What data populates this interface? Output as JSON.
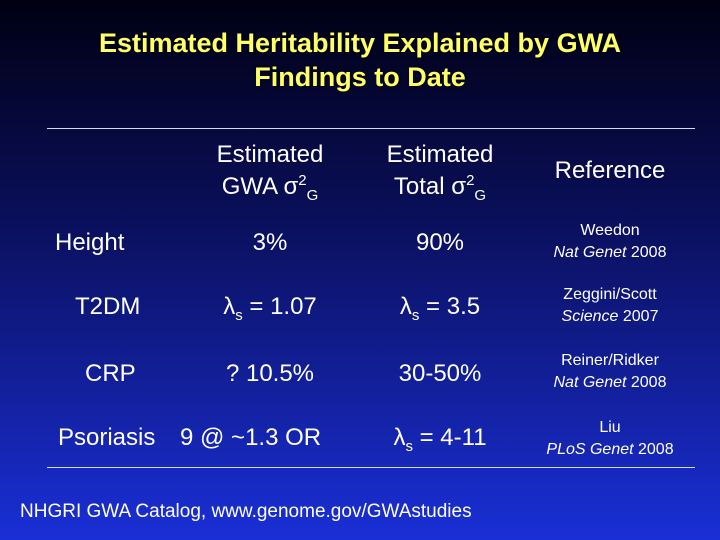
{
  "title": {
    "line1": "Estimated Heritability Explained by GWA",
    "line2": "Findings to Date"
  },
  "headers": {
    "gwa_line1": "Estimated",
    "gwa_line2_main": "GWA σ",
    "gwa_sup": "2",
    "gwa_sub": "G",
    "total_line1": "Estimated",
    "total_line2_main": "Total σ",
    "total_sup": "2",
    "total_sub": "G",
    "reference": "Reference"
  },
  "rows": [
    {
      "trait": "Height",
      "gwa": "3%",
      "total": "90%",
      "ref_author": "Weedon",
      "ref_journal": "Nat Genet",
      "ref_year": " 2008"
    },
    {
      "trait": "T2DM",
      "gwa_lambda": "λ",
      "gwa_lambda_sub": "s",
      "gwa_rest": " = 1.07",
      "total_lambda": "λ",
      "total_lambda_sub": "s",
      "total_rest": " = 3.5",
      "ref_author": "Zeggini/Scott",
      "ref_journal": "Science",
      "ref_year": " 2007"
    },
    {
      "trait": "CRP",
      "gwa": "? 10.5%",
      "total": "30-50%",
      "ref_author": "Reiner/Ridker",
      "ref_journal": "Nat Genet",
      "ref_year": " 2008"
    },
    {
      "trait": "Psoriasis",
      "gwa": "9 @ ~1.3 OR",
      "total_lambda": "λ",
      "total_lambda_sub": "s",
      "total_rest": " = 4-11",
      "ref_author": "Liu",
      "ref_journal": "PLoS Genet",
      "ref_year": " 2008"
    }
  ],
  "footer": "NHGRI GWA Catalog, www.genome.gov/GWAstudies"
}
